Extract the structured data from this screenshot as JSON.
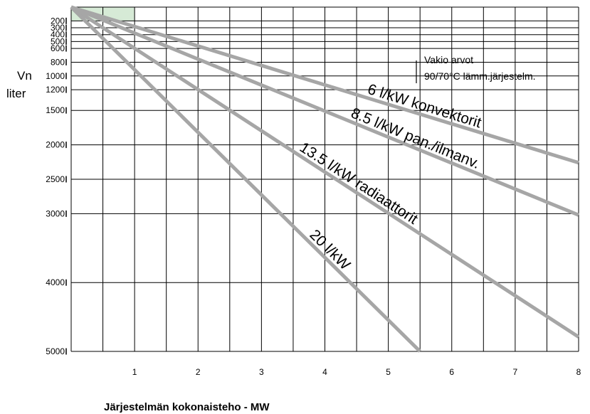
{
  "chart_data": {
    "type": "line",
    "title": "",
    "xlabel": "Järjestelmän kokonaisteho - MW",
    "ylabel_line1": "Vn",
    "ylabel_line2": "liter",
    "xlim": [
      0,
      8
    ],
    "ylim": [
      0,
      5000
    ],
    "y_inverted": true,
    "grid": true,
    "x_ticks": [
      {
        "value": 1,
        "label": "1"
      },
      {
        "value": 2,
        "label": "2"
      },
      {
        "value": 3,
        "label": "3"
      },
      {
        "value": 4,
        "label": "4"
      },
      {
        "value": 5,
        "label": "5"
      },
      {
        "value": 6,
        "label": "6"
      },
      {
        "value": 7,
        "label": "7"
      },
      {
        "value": 8,
        "label": "8"
      }
    ],
    "y_ticks": [
      {
        "value": 200,
        "label": "200"
      },
      {
        "value": 300,
        "label": "300"
      },
      {
        "value": 400,
        "label": "400"
      },
      {
        "value": 500,
        "label": "500"
      },
      {
        "value": 600,
        "label": "600"
      },
      {
        "value": 800,
        "label": "800"
      },
      {
        "value": 1000,
        "label": "1000"
      },
      {
        "value": 1200,
        "label": "1200"
      },
      {
        "value": 1500,
        "label": "1500"
      },
      {
        "value": 2000,
        "label": "2000"
      },
      {
        "value": 2500,
        "label": "2500"
      },
      {
        "value": 3000,
        "label": "3000"
      },
      {
        "value": 4000,
        "label": "4000"
      },
      {
        "value": 5000,
        "label": "5000"
      }
    ],
    "series": [
      {
        "name": "6 l/kW konvektorit",
        "x": [
          0,
          8
        ],
        "y": [
          0,
          2260
        ],
        "color": "#a6a6a6"
      },
      {
        "name": "8.5 l/kW pan./ilmanv.",
        "x": [
          0,
          8
        ],
        "y": [
          0,
          3020
        ],
        "color": "#a6a6a6"
      },
      {
        "name": "13.5 l/kW radiaattorit",
        "x": [
          0,
          8
        ],
        "y": [
          0,
          4790
        ],
        "color": "#a6a6a6"
      },
      {
        "name": "20 l/kW",
        "x": [
          0,
          5.5
        ],
        "y": [
          0,
          5000
        ],
        "color": "#a6a6a6"
      }
    ],
    "highlight_region": {
      "x": [
        0,
        1
      ],
      "y": [
        0,
        200
      ],
      "color": "#d6ead6"
    },
    "annotation": {
      "line1": "Vakio arvot",
      "line2": "90/70°C lämm.järjestelm."
    }
  }
}
